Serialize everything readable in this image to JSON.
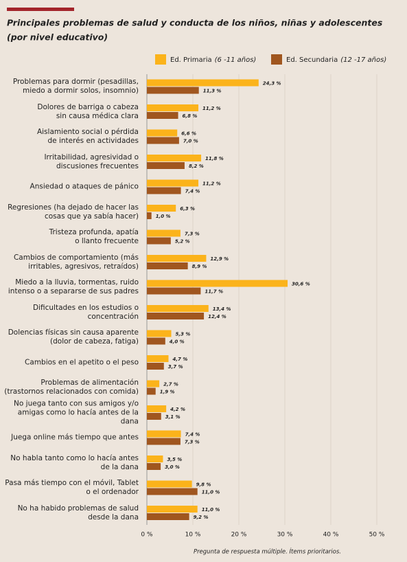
{
  "chart_data": {
    "type": "hbar",
    "title": "Principales problemas de salud y conducta de los niños, niñas y adolescentes",
    "subtitle": "(por nivel educativo)",
    "note": "Pregunta de respuesta múltiple. Ítems prioritarios.",
    "categories": [
      "Problemas para dormir (pesadillas,\nmiedo a dormir solos, insomnio)",
      "Dolores de barriga o cabeza\nsin causa médica clara",
      "Aislamiento social o pérdida\nde interés en actividades",
      "Irritabilidad, agresividad o\ndiscusiones frecuentes",
      "Ansiedad o ataques de pánico",
      "Regresiones (ha dejado de hacer las\ncosas que ya sabía hacer)",
      "Tristeza profunda, apatía\no llanto frecuente",
      "Cambios de comportamiento (más\nirritables, agresivos, retraídos)",
      "Miedo a la lluvia, tormentas, ruido\nintenso o a separarse de sus padres",
      "Dificultades en los estudios o\nconcentración",
      "Dolencias físicas sin causa aparente\n(dolor de cabeza, fatiga)",
      "Cambios en el apetito o el peso",
      "Problemas de alimentación\n(trastornos relacionados con comida)",
      "No juega tanto con sus amigos y/o\namigas como lo hacía antes de la dana",
      "Juega online más tiempo que antes",
      "No habla tanto como lo hacía antes\nde la dana",
      "Pasa más tiempo con el móvil, Tablet\no el ordenador",
      "No ha habido problemas de salud\ndesde la dana"
    ],
    "series": [
      {
        "name": "Ed. Primaria",
        "name_note": "(6 -11 años)",
        "color": "#fbb31b",
        "values": [
          24.3,
          11.2,
          6.6,
          11.8,
          11.2,
          6.3,
          7.3,
          12.9,
          30.6,
          13.4,
          5.3,
          4.7,
          2.7,
          4.2,
          7.4,
          3.5,
          9.8,
          11.0
        ],
        "value_labels": [
          "24,3 %",
          "11,2 %",
          "6,6 %",
          "11,8 %",
          "11,2 %",
          "6,3 %",
          "7,3 %",
          "12,9 %",
          "30,6 %",
          "13,4 %",
          "5,3 %",
          "4,7 %",
          "2,7 %",
          "4,2 %",
          "7,4 %",
          "3,5 %",
          "9,8 %",
          "11,0 %"
        ]
      },
      {
        "name": "Ed. Secundaria",
        "name_note": "(12 -17 años)",
        "color": "#a0561f",
        "values": [
          11.3,
          6.8,
          7.0,
          8.2,
          7.4,
          1.0,
          5.2,
          8.9,
          11.7,
          12.4,
          4.0,
          3.7,
          1.9,
          3.1,
          7.3,
          3.0,
          11.0,
          9.2
        ],
        "value_labels": [
          "11,3 %",
          "6,8 %",
          "7,0 %",
          "8,2 %",
          "7,4 %",
          "1,0 %",
          "5,2 %",
          "8,9 %",
          "11,7 %",
          "12,4 %",
          "4,0 %",
          "3,7 %",
          "1,9 %",
          "3,1 %",
          "7,3 %",
          "3,0 %",
          "11,0 %",
          "9,2 %"
        ]
      }
    ],
    "xlim": [
      0,
      50
    ],
    "xticks": [
      {
        "value": 0,
        "label": "0 %"
      },
      {
        "value": 10,
        "label": "10 %"
      },
      {
        "value": 20,
        "label": "20 %"
      },
      {
        "value": 30,
        "label": "30 %"
      },
      {
        "value": 40,
        "label": "40 %"
      },
      {
        "value": 50,
        "label": "50 %"
      }
    ],
    "grid": true
  }
}
